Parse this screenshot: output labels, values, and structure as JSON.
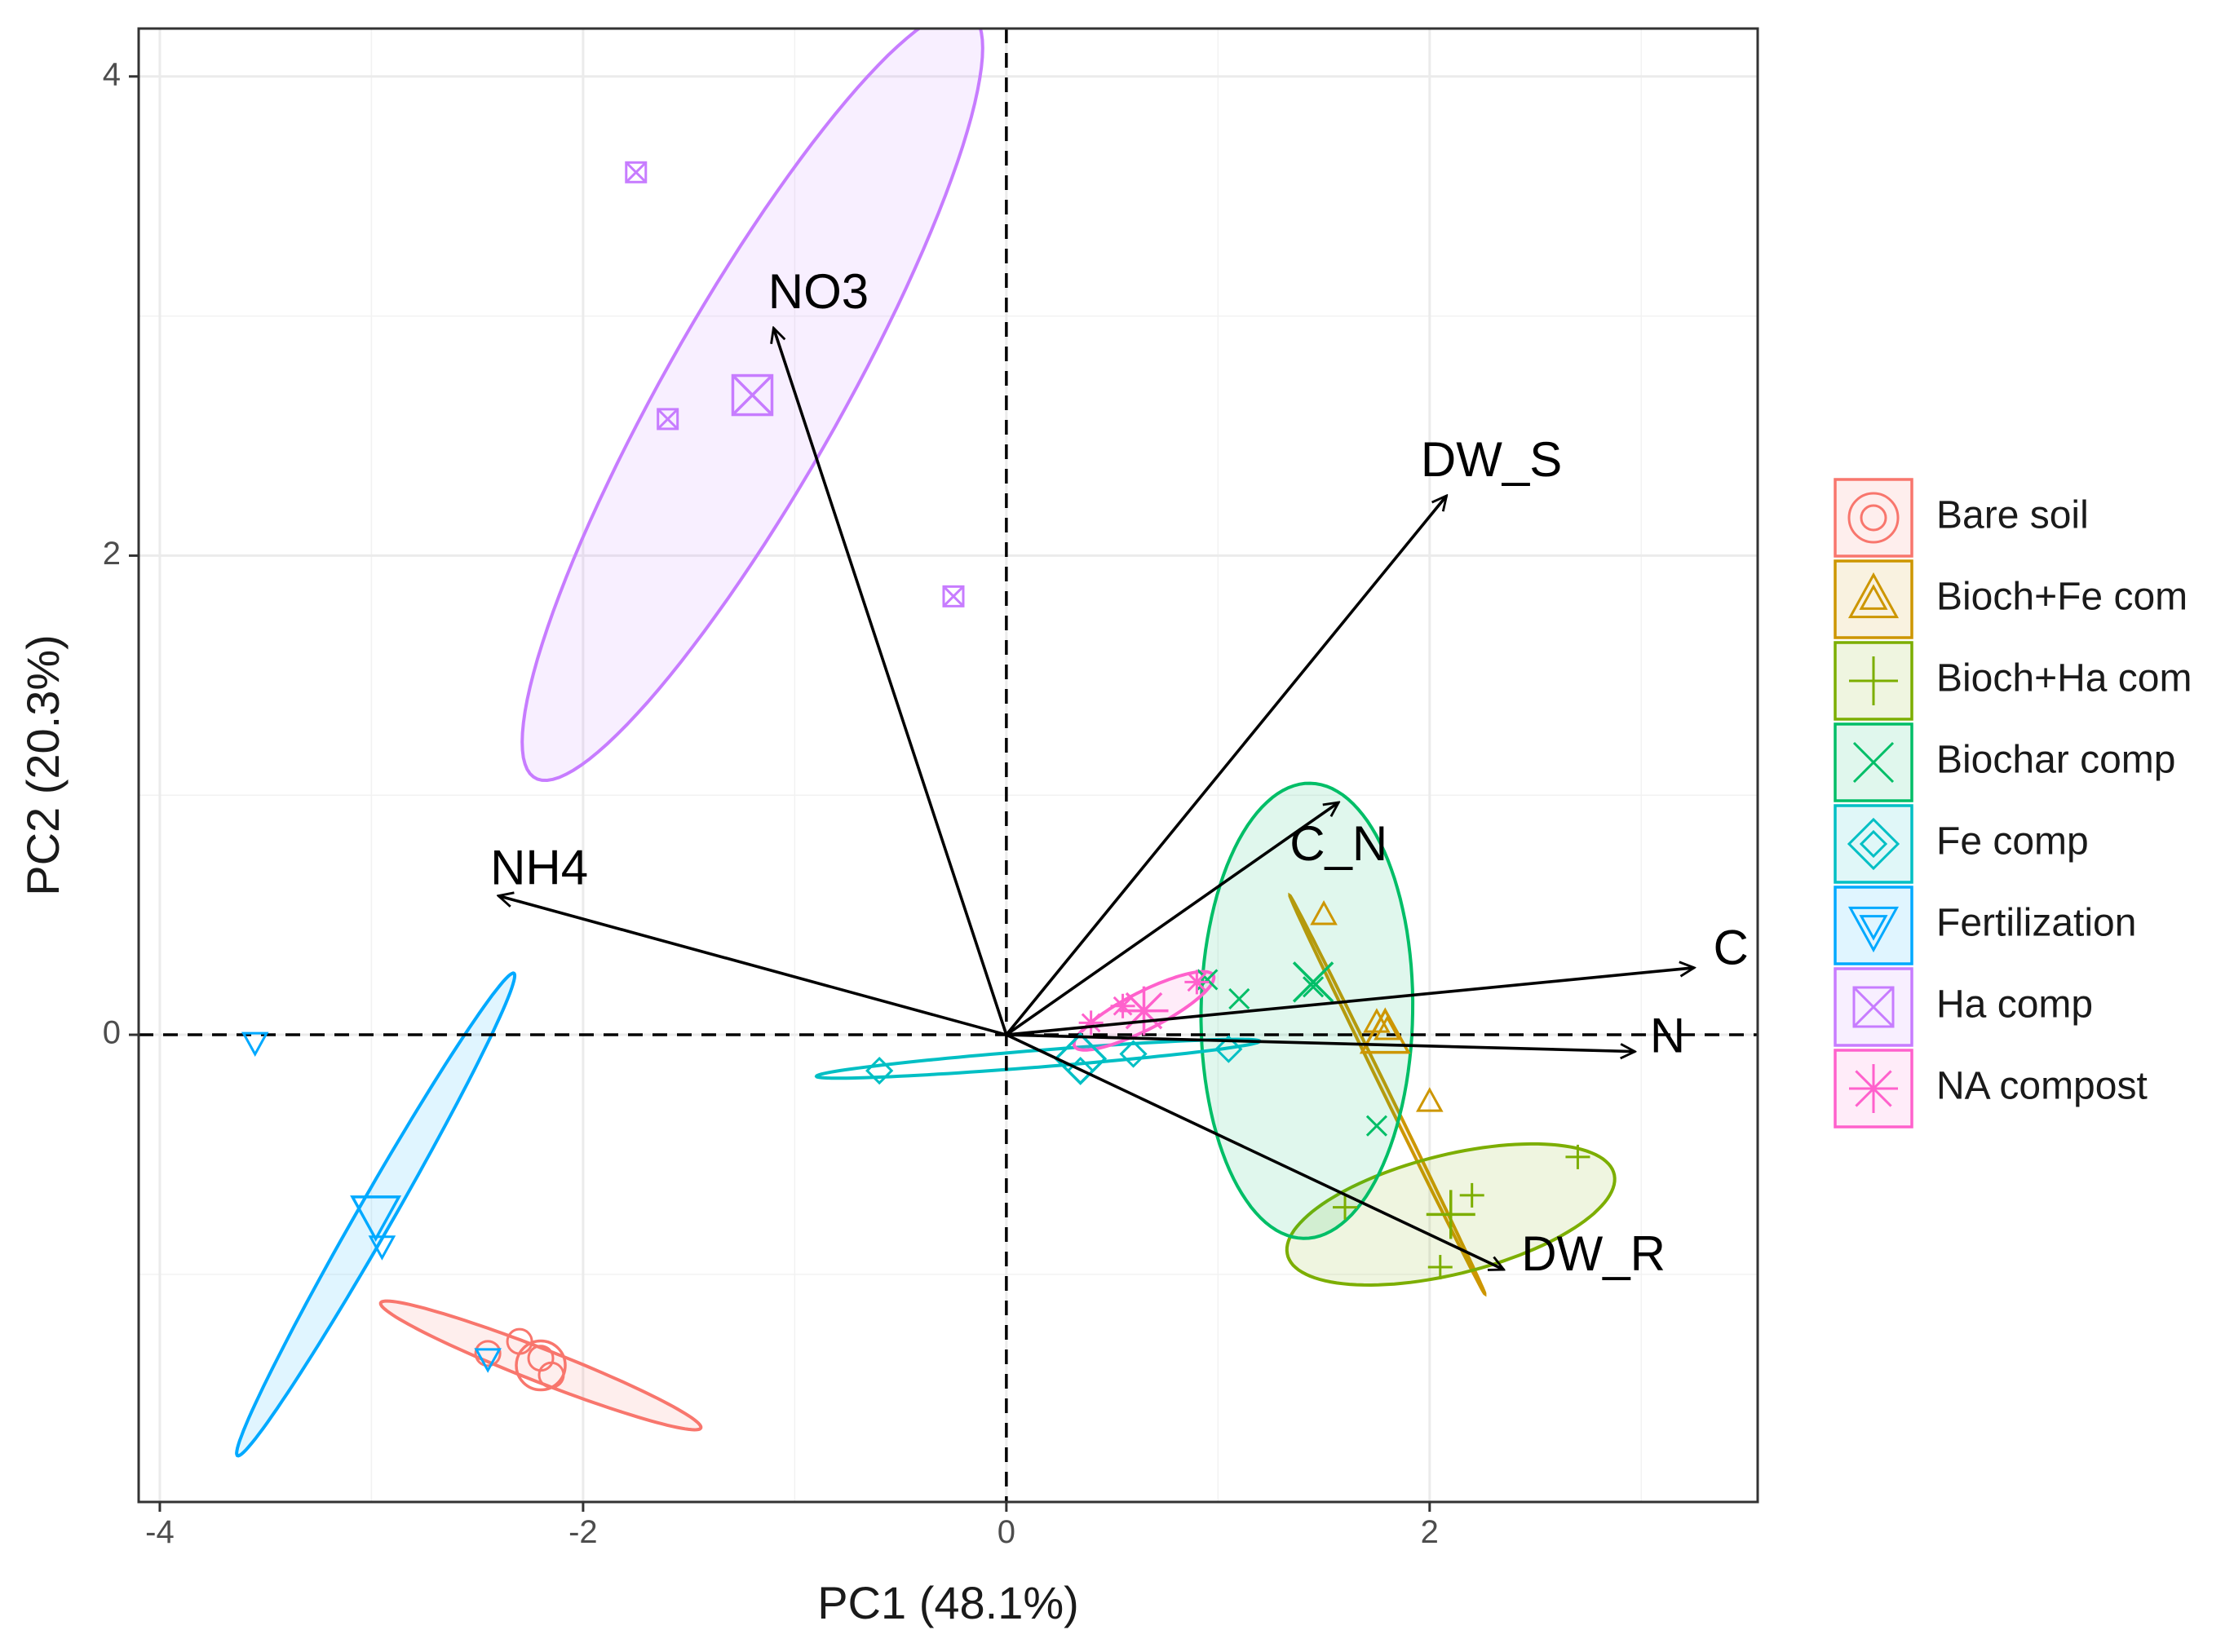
{
  "chart_data": {
    "type": "scatter",
    "subtype": "pca-biplot",
    "xlabel": "PC1 (48.1%)",
    "ylabel": "PC2 (20.3%)",
    "xlim": [
      -4.1,
      3.55
    ],
    "ylim": [
      -1.95,
      4.2
    ],
    "xticks": [
      -4,
      -2,
      0,
      2
    ],
    "yticks": [
      0,
      2,
      4
    ],
    "grid": true,
    "reference_lines": {
      "x": 0,
      "y": 0,
      "style": "dashed"
    },
    "legend_position": "right",
    "groups": [
      {
        "name": "Bare soil",
        "color": "#F8766D",
        "shape": "circle-open",
        "points": [
          [
            -2.45,
            -1.33
          ],
          [
            -2.3,
            -1.28
          ],
          [
            -2.15,
            -1.42
          ],
          [
            -2.2,
            -1.35
          ]
        ],
        "centroid": [
          -2.2,
          -1.38
        ],
        "ellipse": {
          "center": [
            -2.2,
            -1.38
          ],
          "semi_axes": [
            0.8,
            0.07
          ],
          "angle_deg": -19,
          "fill": true
        }
      },
      {
        "name": "Bioch+Fe com",
        "color": "#CD9600",
        "shape": "triangle-open",
        "points": [
          [
            1.5,
            0.5
          ],
          [
            1.75,
            0.05
          ],
          [
            2.0,
            -0.28
          ],
          [
            1.8,
            0.02
          ]
        ],
        "centroid": [
          1.79,
          0.0
        ],
        "ellipse": {
          "center": [
            1.8,
            -0.25
          ],
          "semi_axes": [
            0.95,
            0.012
          ],
          "angle_deg": -61,
          "fill": true
        }
      },
      {
        "name": "Bioch+Ha com",
        "color": "#7CAE00",
        "shape": "plus",
        "points": [
          [
            2.7,
            -0.51
          ],
          [
            1.6,
            -0.72
          ],
          [
            2.05,
            -0.97
          ],
          [
            2.2,
            -0.67
          ]
        ],
        "centroid": [
          2.1,
          -0.75
        ],
        "ellipse": {
          "center": [
            2.1,
            -0.75
          ],
          "semi_axes": [
            0.79,
            0.25
          ],
          "angle_deg": 12,
          "fill": true
        }
      },
      {
        "name": "Biochar comp",
        "color": "#00BE67",
        "shape": "x",
        "points": [
          [
            0.95,
            0.23
          ],
          [
            1.45,
            0.2
          ],
          [
            1.1,
            0.15
          ],
          [
            1.75,
            -0.38
          ],
          [
            1.45,
            0.22
          ]
        ],
        "centroid": [
          1.45,
          0.22
        ],
        "ellipse": {
          "center": [
            1.42,
            0.1
          ],
          "semi_axes": [
            0.95,
            0.5
          ],
          "angle_deg": 89,
          "fill": true
        }
      },
      {
        "name": "Fe comp",
        "color": "#00BFC4",
        "shape": "diamond-open",
        "points": [
          [
            -0.6,
            -0.15
          ],
          [
            0.35,
            -0.15
          ],
          [
            0.6,
            -0.08
          ],
          [
            1.05,
            -0.06
          ]
        ],
        "centroid": [
          0.35,
          -0.1
        ],
        "ellipse": {
          "center": [
            0.15,
            -0.1
          ],
          "semi_axes": [
            1.05,
            0.035
          ],
          "angle_deg": 4,
          "fill": false
        }
      },
      {
        "name": "Fertilization",
        "color": "#00A9FF",
        "shape": "triangle-down-open",
        "points": [
          [
            -3.55,
            -0.03
          ],
          [
            -2.95,
            -0.88
          ],
          [
            -2.45,
            -1.35
          ]
        ],
        "centroid": [
          -2.98,
          -0.75
        ],
        "ellipse": {
          "center": [
            -2.98,
            -0.75
          ],
          "semi_axes": [
            1.2,
            0.08
          ],
          "angle_deg": 57,
          "fill": true
        }
      },
      {
        "name": "Ha comp",
        "color": "#C77CFF",
        "shape": "square-x",
        "points": [
          [
            -1.75,
            3.6
          ],
          [
            -1.6,
            2.57
          ],
          [
            -0.25,
            1.83
          ]
        ],
        "centroid": [
          -1.2,
          2.67
        ],
        "ellipse": {
          "center": [
            -1.2,
            2.67
          ],
          "semi_axes": [
            1.9,
            0.4
          ],
          "angle_deg": 57,
          "fill": true
        }
      },
      {
        "name": "NA compost",
        "color": "#FF61CC",
        "shape": "asterisk",
        "points": [
          [
            0.4,
            0.05
          ],
          [
            0.55,
            0.12
          ],
          [
            0.9,
            0.22
          ],
          [
            0.65,
            0.1
          ]
        ],
        "centroid": [
          0.65,
          0.1
        ],
        "ellipse": {
          "center": [
            0.65,
            0.1
          ],
          "semi_axes": [
            0.36,
            0.08
          ],
          "angle_deg": 24,
          "fill": true
        }
      }
    ],
    "variables": [
      {
        "name": "NO3",
        "x": -1.1,
        "y": 2.95
      },
      {
        "name": "DW_S",
        "x": 2.08,
        "y": 2.25
      },
      {
        "name": "NH4",
        "x": -2.4,
        "y": 0.58
      },
      {
        "name": "C_N",
        "x": 1.57,
        "y": 0.97
      },
      {
        "name": "C",
        "x": 3.25,
        "y": 0.28
      },
      {
        "name": "N",
        "x": 2.97,
        "y": -0.07
      },
      {
        "name": "DW_R",
        "x": 2.35,
        "y": -0.98
      }
    ]
  }
}
